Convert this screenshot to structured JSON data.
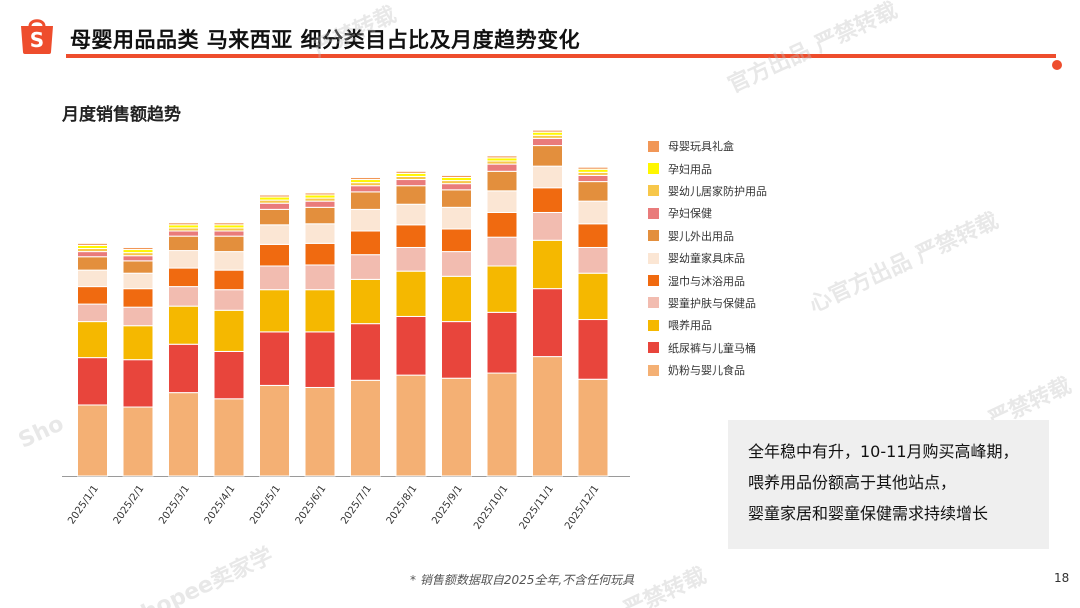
{
  "header": {
    "title": "母婴用品品类 马来西亚 细分类目占比及月度趋势变化",
    "logo_icon": "shopee-bag-icon",
    "accent_color": "#ee4d2d"
  },
  "section_title": "月度销售额趋势",
  "chart_data": {
    "type": "bar",
    "stacked": true,
    "title": "月度销售额趋势",
    "categories": [
      "2025/1/1",
      "2025/2/1",
      "2025/3/1",
      "2025/4/1",
      "2025/5/1",
      "2025/6/1",
      "2025/7/1",
      "2025/8/1",
      "2025/9/1",
      "2025/10/1",
      "2025/11/1",
      "2025/12/1"
    ],
    "ylim": [
      0,
      340
    ],
    "grid": false,
    "legend_position": "right",
    "series": [
      {
        "name": "奶粉与婴儿食品",
        "color": "#f4b074",
        "values": [
          69,
          67,
          81,
          75,
          88,
          86,
          93,
          98,
          95,
          100,
          116,
          94
        ]
      },
      {
        "name": "纸尿裤与儿童马桶",
        "color": "#e8453c",
        "values": [
          46,
          46,
          47,
          46,
          52,
          54,
          55,
          57,
          55,
          59,
          66,
          58
        ]
      },
      {
        "name": "喂养用品",
        "color": "#f5b800",
        "values": [
          35,
          33,
          37,
          40,
          41,
          41,
          43,
          44,
          44,
          45,
          47,
          45
        ]
      },
      {
        "name": "婴童护肤与保健品",
        "color": "#f2bcb0",
        "values": [
          17,
          18,
          19,
          20,
          23,
          24,
          24,
          23,
          24,
          28,
          27,
          25
        ]
      },
      {
        "name": "湿巾与沐浴用品",
        "color": "#f06a10",
        "values": [
          17,
          18,
          18,
          19,
          21,
          21,
          23,
          22,
          22,
          24,
          24,
          23
        ]
      },
      {
        "name": "婴幼童家具床品",
        "color": "#fbe6d4",
        "values": [
          16,
          15,
          17,
          18,
          19,
          19,
          21,
          20,
          21,
          21,
          21,
          22
        ]
      },
      {
        "name": "婴儿外出用品",
        "color": "#e38f3d",
        "values": [
          13,
          12,
          14,
          15,
          15,
          16,
          17,
          18,
          17,
          19,
          20,
          19
        ]
      },
      {
        "name": "孕妇保健",
        "color": "#e97b7b",
        "values": [
          5,
          5,
          5,
          5,
          6,
          6,
          6,
          6,
          6,
          7,
          7,
          6
        ]
      },
      {
        "name": "婴幼儿居家防护用品",
        "color": "#f7c74a",
        "values": [
          3,
          3,
          3,
          3,
          3,
          3,
          3,
          3,
          3,
          3,
          3,
          3
        ]
      },
      {
        "name": "孕妇用品",
        "color": "#fff700",
        "values": [
          3,
          3,
          3,
          3,
          3,
          3,
          3,
          3,
          3,
          3,
          3,
          3
        ]
      },
      {
        "name": "母婴玩具礼盒",
        "color": "#f19757",
        "values": [
          2,
          2,
          2,
          2,
          2,
          2,
          2,
          2,
          2,
          2,
          2,
          2
        ]
      }
    ]
  },
  "legend_order": [
    "母婴玩具礼盒",
    "孕妇用品",
    "婴幼儿居家防护用品",
    "孕妇保健",
    "婴儿外出用品",
    "婴幼童家具床品",
    "湿巾与沐浴用品",
    "婴童护肤与保健品",
    "喂养用品",
    "纸尿裤与儿童马桶",
    "奶粉与婴儿食品"
  ],
  "note": {
    "line1": "全年稳中有升，10-11月购买高峰期，",
    "line2": "喂养用品份额高于其他站点，",
    "line3": "婴童家居和婴童保健需求持续增长"
  },
  "footnote": "* 销售额数据取自2025全年,不含任何玩具",
  "page_number": "18",
  "watermarks": [
    "严禁转载",
    "官方出品 严禁转载",
    "心官方出品 严禁转载",
    "严禁转载",
    "Shopee卖家学",
    "Sho",
    "严禁转载"
  ]
}
